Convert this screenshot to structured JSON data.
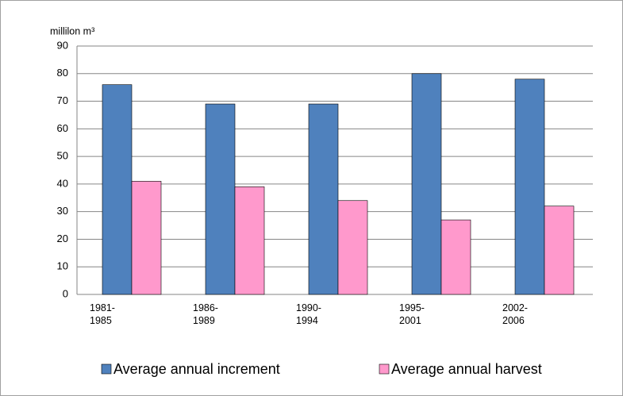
{
  "chart_data": {
    "type": "bar",
    "y_label": "millilon m³",
    "categories": [
      "1981-1985",
      "1986-1989",
      "1990-1994",
      "1995-2001",
      "2002-2006"
    ],
    "series": [
      {
        "name": "Average annual increment",
        "color": "#4f81bd",
        "values": [
          76,
          69,
          69,
          80,
          78
        ]
      },
      {
        "name": "Average annual harvest",
        "color": "#ff99cc",
        "values": [
          41,
          39,
          34,
          27,
          32
        ]
      }
    ],
    "ylim": [
      0,
      90
    ],
    "yticks": [
      0,
      10,
      20,
      30,
      40,
      50,
      60,
      70,
      80,
      90
    ],
    "grid": true,
    "legend": "bottom"
  }
}
